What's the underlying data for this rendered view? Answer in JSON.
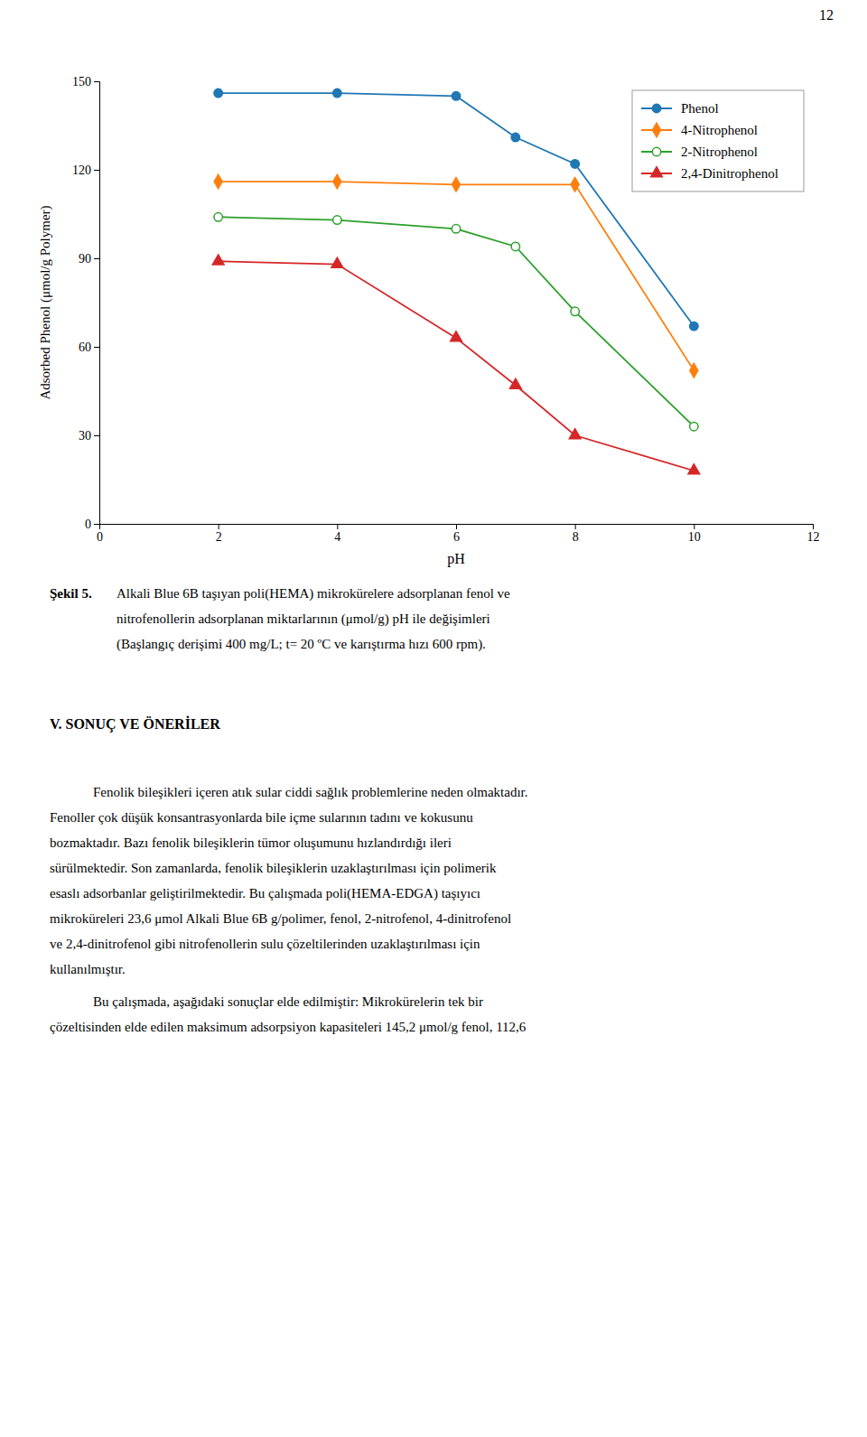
{
  "chart_data": {
    "type": "line",
    "x_label": "pH",
    "y_label": "Adsorbed Phenol (μmol/g Polymer)",
    "xlim": [
      0,
      12
    ],
    "ylim": [
      0,
      150
    ],
    "xticks": [
      0,
      2,
      4,
      6,
      8,
      10,
      12
    ],
    "yticks": [
      0,
      30,
      60,
      90,
      120,
      150
    ],
    "grid": false,
    "legend": "upper right",
    "series": [
      {
        "name": "Phenol",
        "marker": "circle",
        "x": [
          2,
          4,
          6,
          7,
          8,
          10
        ],
        "values": [
          146,
          146,
          145,
          131,
          122,
          67
        ]
      },
      {
        "name": "4-Nitrophenol",
        "marker": "diamond",
        "x": [
          2,
          4,
          6,
          8,
          10
        ],
        "values": [
          116,
          116,
          115,
          115,
          52
        ]
      },
      {
        "name": "2-Nitrophenol",
        "marker": "open-circle",
        "x": [
          2,
          4,
          6,
          7,
          8,
          10
        ],
        "values": [
          104,
          103,
          100,
          94,
          72,
          33
        ]
      },
      {
        "name": "2,4-Dinitrophenol",
        "marker": "triangle-up",
        "x": [
          2,
          4,
          6,
          7,
          8,
          10
        ],
        "values": [
          89,
          88,
          63,
          47,
          30,
          18
        ]
      }
    ]
  },
  "page": {
    "page_number": "12",
    "caption_label": "Şekil 5.",
    "caption": [
      "Alkali Blue 6B taşıyan poli(HEMA) mikrokürelere adsorplanan fenol ve",
      "nitrofenollerin adsorplanan miktarlarının (μmol/g) pH ile değişimleri",
      "(Başlangıç derişimi 400 mg/L; t= 20 ºC ve karıştırma hızı 600 rpm)."
    ],
    "section_title": "V. SONUÇ VE ÖNERİLER",
    "paragraphs": [
      [
        "Fenolik bileşikleri içeren atık sular ciddi sağlık problemlerine neden olmaktadır.",
        "Fenoller çok düşük konsantrasyonlarda bile içme sularının tadını ve kokusunu",
        "bozmaktadır. Bazı fenolik bileşiklerin tümor oluşumunu hızlandırdığı ileri",
        "sürülmektedir. Son zamanlarda, fenolik bileşiklerin uzaklaştırılması için polimerik",
        "esaslı adsorbanlar geliştirilmektedir. Bu çalışmada poli(HEMA-EDGA) taşıyıcı",
        "mikroküreleri 23,6 μmol Alkali Blue 6B g/polimer, fenol, 2-nitrofenol, 4-dinitrofenol",
        "ve 2,4-dinitrofenol gibi nitrofenollerin sulu çözeltilerinden uzaklaştırılması için",
        "kullanılmıştır."
      ],
      [
        "Bu çalışmada, aşağıdaki sonuçlar elde edilmiştir: Mikrokürelerin tek bir",
        "çözeltisinden elde edilen maksimum adsorpsiyon kapasiteleri 145,2 μmol/g fenol, 112,6"
      ]
    ]
  }
}
